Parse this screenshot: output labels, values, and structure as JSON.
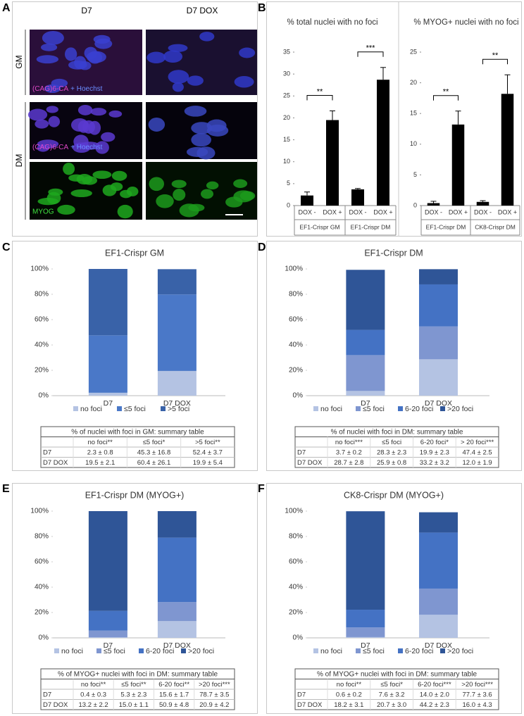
{
  "panel_labels": [
    "A",
    "B",
    "C",
    "D",
    "E",
    "F"
  ],
  "panel_a": {
    "columns": [
      "D7",
      "D7 DOX"
    ],
    "rows": [
      "GM",
      "DM"
    ],
    "stain_labels": [
      "(CAG)6-CA",
      "+ Hoechst",
      "MYOG"
    ]
  },
  "chart_data": [
    {
      "type": "bar",
      "title": "% total nuclei with no foci",
      "categories": [
        "DOX -",
        "DOX +",
        "DOX -",
        "DOX +"
      ],
      "values": [
        2.3,
        19.5,
        3.7,
        28.7
      ],
      "errors": [
        0.8,
        2.1,
        0.2,
        2.8
      ],
      "groups": [
        "EF1-Crispr GM",
        "EF1-Crispr DM"
      ],
      "significance": [
        "**",
        "***"
      ],
      "color": "#000000",
      "ylim": [
        0,
        35
      ],
      "yticks": [
        0,
        5,
        10,
        15,
        20,
        25,
        30,
        35
      ]
    },
    {
      "type": "bar",
      "title": "% MYOG+ nuclei with no foci",
      "categories": [
        "DOX -",
        "DOX +",
        "DOX -",
        "DOX +"
      ],
      "values": [
        0.4,
        13.2,
        0.6,
        18.2
      ],
      "errors": [
        0.3,
        2.2,
        0.2,
        3.1
      ],
      "groups": [
        "EF1-Crispr DM",
        "CK8-Crispr DM"
      ],
      "significance": [
        "**",
        "**"
      ],
      "color": "#000000",
      "ylim": [
        0,
        25
      ],
      "yticks": [
        0,
        5,
        10,
        15,
        20,
        25
      ]
    },
    {
      "type": "stacked_bar",
      "title": "EF1-Crispr GM",
      "categories": [
        "D7",
        "D7 DOX"
      ],
      "series": [
        {
          "name": "no foci",
          "color": "#b4c3e3",
          "values": [
            2.3,
            19.5
          ]
        },
        {
          "name": "≤5 foci",
          "color": "#4a78c8",
          "values": [
            45.3,
            60.4
          ]
        },
        {
          "name": ">5 foci",
          "color": "#3962a8",
          "values": [
            52.4,
            19.9
          ]
        }
      ],
      "ylim": [
        0,
        100
      ],
      "yticks": [
        {
          "value": 0,
          "label": "0%"
        },
        {
          "value": 20,
          "label": "20%"
        },
        {
          "value": 40,
          "label": "40%"
        },
        {
          "value": 60,
          "label": "60%"
        },
        {
          "value": 80,
          "label": "80%"
        },
        {
          "value": 100,
          "label": "100%"
        }
      ],
      "table": {
        "title": "% of nuclei with foci in GM: summary table",
        "header": [
          "no foci**",
          "≤5 foci*",
          ">5 foci**"
        ],
        "rows": [
          {
            "label": "D7",
            "cells": [
              "2.3 ± 0.8",
              "45.3 ± 16.8",
              "52.4 ± 3.7"
            ]
          },
          {
            "label": "D7 DOX",
            "cells": [
              "19.5 ± 2.1",
              "60.4 ± 26.1",
              "19.9 ± 5.4"
            ]
          }
        ]
      }
    },
    {
      "type": "stacked_bar",
      "title": "EF1-Crispr DM",
      "categories": [
        "D7",
        "D7 DOX"
      ],
      "series": [
        {
          "name": "no foci",
          "color": "#b4c3e3",
          "values": [
            3.7,
            28.7
          ]
        },
        {
          "name": "≤5 foci",
          "color": "#7f96d0",
          "values": [
            28.3,
            25.9
          ]
        },
        {
          "name": "6-20 foci",
          "color": "#4472c4",
          "values": [
            19.9,
            33.2
          ]
        },
        {
          "name": ">20 foci",
          "color": "#2f5597",
          "values": [
            47.4,
            12.0
          ]
        }
      ],
      "ylim": [
        0,
        100
      ],
      "yticks": [
        {
          "value": 0,
          "label": "0%"
        },
        {
          "value": 20,
          "label": "20%"
        },
        {
          "value": 40,
          "label": "40%"
        },
        {
          "value": 60,
          "label": "60%"
        },
        {
          "value": 80,
          "label": "80%"
        },
        {
          "value": 100,
          "label": "100%"
        }
      ],
      "table": {
        "title": "% of nuclei with foci in DM: summary table",
        "header": [
          "no foci***",
          "≤5 foci",
          "6-20 foci*",
          "> 20 foci***"
        ],
        "rows": [
          {
            "label": "D7",
            "cells": [
              "3.7 ± 0.2",
              "28.3 ± 2.3",
              "19.9 ± 2.3",
              "47.4 ± 2.5"
            ]
          },
          {
            "label": "D7 DOX",
            "cells": [
              "28.7 ± 2.8",
              "25.9 ± 0.8",
              "33.2 ± 3.2",
              "12.0 ± 1.9"
            ]
          }
        ]
      }
    },
    {
      "type": "stacked_bar",
      "title": "EF1-Crispr DM (MYOG+)",
      "categories": [
        "D7",
        "D7 DOX"
      ],
      "series": [
        {
          "name": "no foci",
          "color": "#b4c3e3",
          "values": [
            0.4,
            13.2
          ]
        },
        {
          "name": "≤5 foci",
          "color": "#7f96d0",
          "values": [
            5.3,
            15.0
          ]
        },
        {
          "name": "6-20 foci",
          "color": "#4472c4",
          "values": [
            15.6,
            50.9
          ]
        },
        {
          "name": ">20 foci",
          "color": "#2f5597",
          "values": [
            78.7,
            20.9
          ]
        }
      ],
      "ylim": [
        0,
        100
      ],
      "yticks": [
        {
          "value": 0,
          "label": "0%"
        },
        {
          "value": 20,
          "label": "20%"
        },
        {
          "value": 40,
          "label": "40%"
        },
        {
          "value": 60,
          "label": "60%"
        },
        {
          "value": 80,
          "label": "80%"
        },
        {
          "value": 100,
          "label": "100%"
        }
      ],
      "table": {
        "title": "% of MYOG+ nuclei with foci in DM: summary table",
        "header": [
          "no foci**",
          "≤5 foci**",
          "6-20 foci**",
          ">20 foci***"
        ],
        "rows": [
          {
            "label": "D7",
            "cells": [
              "0.4 ± 0.3",
              "5.3 ± 2.3",
              "15.6 ± 1.7",
              "78.7 ± 3.5"
            ]
          },
          {
            "label": "D7 DOX",
            "cells": [
              "13.2 ± 2.2",
              "15.0 ± 1.1",
              "50.9 ± 4.8",
              "20.9 ± 4.2"
            ]
          }
        ]
      }
    },
    {
      "type": "stacked_bar",
      "title": "CK8-Crispr DM (MYOG+)",
      "categories": [
        "D7",
        "D7 DOX"
      ],
      "series": [
        {
          "name": "no foci",
          "color": "#b4c3e3",
          "values": [
            0.6,
            18.2
          ]
        },
        {
          "name": "≤5 foci",
          "color": "#7f96d0",
          "values": [
            7.6,
            20.7
          ]
        },
        {
          "name": "6-20 foci",
          "color": "#4472c4",
          "values": [
            14.0,
            44.2
          ]
        },
        {
          "name": ">20 foci",
          "color": "#2f5597",
          "values": [
            77.7,
            16.0
          ]
        }
      ],
      "ylim": [
        0,
        100
      ],
      "yticks": [
        {
          "value": 0,
          "label": "0%"
        },
        {
          "value": 20,
          "label": "20%"
        },
        {
          "value": 40,
          "label": "40%"
        },
        {
          "value": 60,
          "label": "60%"
        },
        {
          "value": 80,
          "label": "80%"
        },
        {
          "value": 100,
          "label": "100%"
        }
      ],
      "table": {
        "title": "% of MYOG+ nuclei with foci in DM: summary table",
        "header": [
          "no foci**",
          "≤5 foci*",
          "6-20 foci***",
          ">20 foci***"
        ],
        "rows": [
          {
            "label": "D7",
            "cells": [
              "0.6 ± 0.2",
              "7.6 ± 3.2",
              "14.0 ± 2.0",
              "77.7 ± 3.6"
            ]
          },
          {
            "label": "D7 DOX",
            "cells": [
              "18.2 ± 3.1",
              "20.7 ± 3.0",
              "44.2 ± 2.3",
              "16.0 ± 4.3"
            ]
          }
        ]
      }
    }
  ]
}
